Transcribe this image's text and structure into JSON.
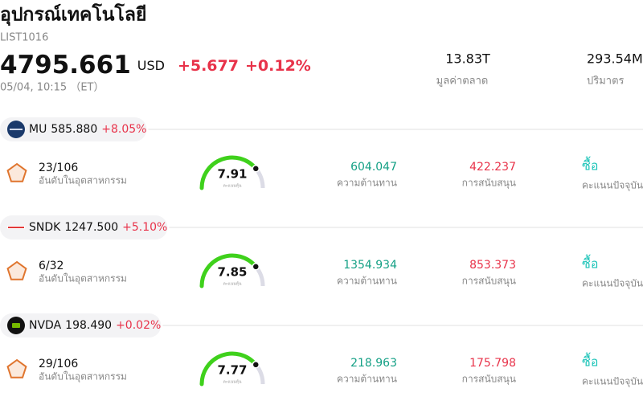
{
  "header": {
    "title": "อุปกรณ์เทคโนโลยี",
    "code": "LIST1016",
    "price": "4795.661",
    "currency": "USD",
    "change": "+5.677",
    "change_percent": "+0.12%",
    "time": "05/04, 10:15 （ET）",
    "market_cap": "13.83T",
    "market_cap_label": "มูลค่าตลาด",
    "volume": "293.54M",
    "volume_label": "ปริมาตร"
  },
  "stocks": [
    {
      "ticker": "MU",
      "price": "585.880",
      "change": "+8.05%",
      "rank": "23/106",
      "rank_label": "อันดับในอุตสาหกรรม",
      "score": "7.91",
      "score_label": "คะแนนหุ้น",
      "resistance": "604.047",
      "resistance_label": "ความต้านทาน",
      "support": "422.237",
      "support_label": "การสนับสนุน",
      "rating": "ซื้อ",
      "rating_label": "คะแนนปัจจุบัน"
    },
    {
      "ticker": "SNDK",
      "price": "1247.500",
      "change": "+5.10%",
      "rank": "6/32",
      "rank_label": "อันดับในอุตสาหกรรม",
      "score": "7.85",
      "score_label": "คะแนนหุ้น",
      "resistance": "1354.934",
      "resistance_label": "ความต้านทาน",
      "support": "853.373",
      "support_label": "การสนับสนุน",
      "rating": "ซื้อ",
      "rating_label": "คะแนนปัจจุบัน"
    },
    {
      "ticker": "NVDA",
      "price": "198.490",
      "change": "+0.02%",
      "rank": "29/106",
      "rank_label": "อันดับในอุตสาหกรรม",
      "score": "7.77",
      "score_label": "คะแนนหุ้น",
      "resistance": "218.963",
      "resistance_label": "ความต้านทาน",
      "support": "175.798",
      "support_label": "การสนับสนุน",
      "rating": "ซื้อ",
      "rating_label": "คะแนนปัจจุบัน"
    }
  ]
}
